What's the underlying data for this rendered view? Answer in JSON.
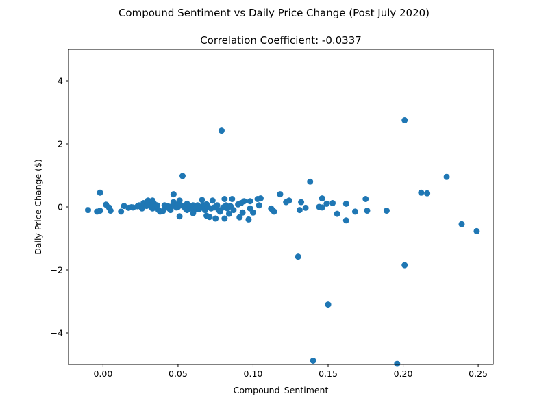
{
  "chart_data": {
    "type": "scatter",
    "suptitle": "Compound Sentiment vs Daily Price Change (Post July 2020)",
    "title": "Correlation Coefficient: -0.0337",
    "xlabel": "Compound_Sentiment",
    "ylabel": "Daily Price Change ($)",
    "xlim": [
      -0.023,
      0.26
    ],
    "ylim": [
      -5,
      5
    ],
    "xticks": [
      0.0,
      0.05,
      0.1,
      0.15,
      0.2,
      0.25
    ],
    "xtick_labels": [
      "0.00",
      "0.05",
      "0.10",
      "0.15",
      "0.20",
      "0.25"
    ],
    "yticks": [
      -4,
      -2,
      0,
      2,
      4
    ],
    "ytick_labels": [
      "−4",
      "−2",
      "0",
      "2",
      "4"
    ],
    "grid": false,
    "marker_color": "#1f77b4",
    "points": [
      [
        -0.01,
        -0.1
      ],
      [
        -0.004,
        -0.15
      ],
      [
        -0.002,
        -0.12
      ],
      [
        -0.002,
        0.45
      ],
      [
        0.002,
        0.07
      ],
      [
        0.004,
        -0.02
      ],
      [
        0.005,
        -0.12
      ],
      [
        0.012,
        -0.15
      ],
      [
        0.014,
        0.03
      ],
      [
        0.017,
        -0.03
      ],
      [
        0.019,
        -0.01
      ],
      [
        0.02,
        -0.02
      ],
      [
        0.023,
        0.02
      ],
      [
        0.024,
        0.05
      ],
      [
        0.025,
        0.03
      ],
      [
        0.026,
        -0.05
      ],
      [
        0.027,
        0.12
      ],
      [
        0.028,
        0.08
      ],
      [
        0.029,
        0.03
      ],
      [
        0.03,
        0.2
      ],
      [
        0.031,
        0.05
      ],
      [
        0.032,
        0.0
      ],
      [
        0.033,
        -0.05
      ],
      [
        0.033,
        0.2
      ],
      [
        0.034,
        0.1
      ],
      [
        0.035,
        -0.02
      ],
      [
        0.036,
        0.05
      ],
      [
        0.037,
        -0.1
      ],
      [
        0.038,
        -0.15
      ],
      [
        0.04,
        -0.13
      ],
      [
        0.041,
        0.05
      ],
      [
        0.042,
        -0.01
      ],
      [
        0.043,
        0.03
      ],
      [
        0.044,
        -0.05
      ],
      [
        0.045,
        -0.1
      ],
      [
        0.046,
        0.02
      ],
      [
        0.047,
        0.4
      ],
      [
        0.047,
        0.15
      ],
      [
        0.048,
        0.05
      ],
      [
        0.049,
        -0.02
      ],
      [
        0.05,
        0.0
      ],
      [
        0.05,
        0.08
      ],
      [
        0.051,
        -0.3
      ],
      [
        0.051,
        0.2
      ],
      [
        0.052,
        0.05
      ],
      [
        0.053,
        0.98
      ],
      [
        0.054,
        0.0
      ],
      [
        0.055,
        -0.05
      ],
      [
        0.056,
        0.1
      ],
      [
        0.056,
        -0.1
      ],
      [
        0.057,
        0.05
      ],
      [
        0.058,
        0.0
      ],
      [
        0.059,
        -0.05
      ],
      [
        0.06,
        -0.2
      ],
      [
        0.06,
        0.05
      ],
      [
        0.061,
        -0.1
      ],
      [
        0.062,
        -0.02
      ],
      [
        0.063,
        0.05
      ],
      [
        0.064,
        -0.08
      ],
      [
        0.065,
        0.0
      ],
      [
        0.066,
        0.22
      ],
      [
        0.067,
        0.05
      ],
      [
        0.068,
        -0.1
      ],
      [
        0.069,
        -0.28
      ],
      [
        0.069,
        0.08
      ],
      [
        0.07,
        0.0
      ],
      [
        0.071,
        -0.32
      ],
      [
        0.072,
        -0.05
      ],
      [
        0.073,
        0.2
      ],
      [
        0.074,
        -0.02
      ],
      [
        0.075,
        -0.37
      ],
      [
        0.076,
        0.05
      ],
      [
        0.077,
        -0.1
      ],
      [
        0.078,
        -0.15
      ],
      [
        0.079,
        2.42
      ],
      [
        0.08,
        -0.02
      ],
      [
        0.081,
        0.25
      ],
      [
        0.081,
        -0.37
      ],
      [
        0.082,
        0.05
      ],
      [
        0.083,
        -0.05
      ],
      [
        0.084,
        -0.22
      ],
      [
        0.085,
        0.02
      ],
      [
        0.086,
        0.25
      ],
      [
        0.087,
        -0.1
      ],
      [
        0.09,
        0.08
      ],
      [
        0.091,
        -0.33
      ],
      [
        0.092,
        0.12
      ],
      [
        0.093,
        -0.18
      ],
      [
        0.094,
        0.18
      ],
      [
        0.097,
        -0.4
      ],
      [
        0.098,
        0.18
      ],
      [
        0.098,
        -0.05
      ],
      [
        0.1,
        -0.18
      ],
      [
        0.103,
        0.25
      ],
      [
        0.104,
        0.05
      ],
      [
        0.105,
        0.27
      ],
      [
        0.112,
        -0.05
      ],
      [
        0.113,
        -0.1
      ],
      [
        0.114,
        -0.15
      ],
      [
        0.118,
        0.4
      ],
      [
        0.122,
        0.15
      ],
      [
        0.124,
        0.2
      ],
      [
        0.13,
        -1.58
      ],
      [
        0.131,
        -0.1
      ],
      [
        0.132,
        0.15
      ],
      [
        0.135,
        -0.03
      ],
      [
        0.138,
        0.8
      ],
      [
        0.14,
        -4.88
      ],
      [
        0.144,
        0.0
      ],
      [
        0.146,
        0.27
      ],
      [
        0.146,
        -0.02
      ],
      [
        0.149,
        0.1
      ],
      [
        0.15,
        -3.1
      ],
      [
        0.153,
        0.12
      ],
      [
        0.156,
        -0.22
      ],
      [
        0.162,
        -0.43
      ],
      [
        0.162,
        0.1
      ],
      [
        0.168,
        -0.15
      ],
      [
        0.175,
        0.25
      ],
      [
        0.176,
        -0.12
      ],
      [
        0.189,
        -0.12
      ],
      [
        0.196,
        -4.98
      ],
      [
        0.201,
        2.75
      ],
      [
        0.201,
        -1.85
      ],
      [
        0.212,
        0.45
      ],
      [
        0.216,
        0.43
      ],
      [
        0.229,
        0.95
      ],
      [
        0.239,
        -0.55
      ],
      [
        0.249,
        -0.77
      ]
    ]
  }
}
